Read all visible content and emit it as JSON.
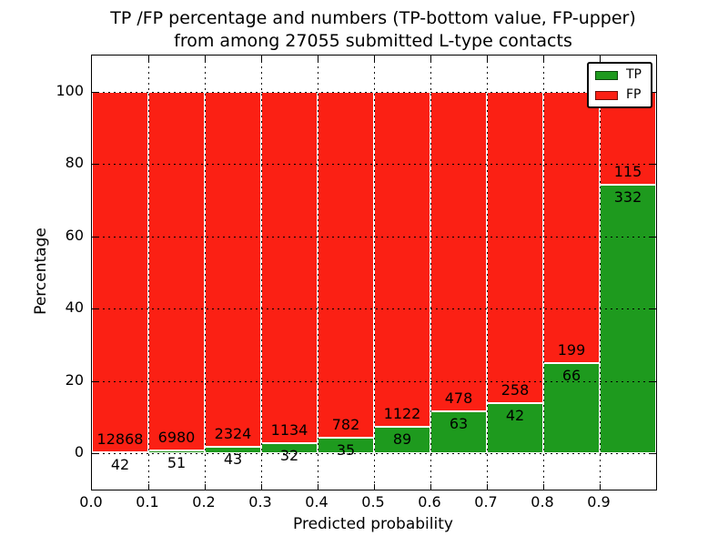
{
  "chart_data": {
    "type": "bar",
    "stacked": true,
    "normalized_to_percent": true,
    "title": "TP /FP percentage and numbers (TP-bottom value, FP-upper)",
    "subtitle": "from among 27055 submitted L-type contacts",
    "xlabel": "Predicted probability",
    "ylabel": "Percentage",
    "x_tick_labels": [
      "0.0",
      "0.1",
      "0.2",
      "0.3",
      "0.4",
      "0.5",
      "0.6",
      "0.7",
      "0.8",
      "0.9"
    ],
    "y_ticks": [
      0,
      20,
      40,
      60,
      80,
      100
    ],
    "xlim": [
      0.0,
      1.0
    ],
    "ylim": [
      -10,
      110
    ],
    "bin_width": 0.1,
    "categories": [
      "0.0-0.1",
      "0.1-0.2",
      "0.2-0.3",
      "0.3-0.4",
      "0.4-0.5",
      "0.5-0.6",
      "0.6-0.7",
      "0.7-0.8",
      "0.8-0.9",
      "0.9-1.0"
    ],
    "series": [
      {
        "name": "TP",
        "color": "#1e9a1e",
        "values": [
          42,
          51,
          43,
          32,
          35,
          89,
          63,
          42,
          66,
          332
        ]
      },
      {
        "name": "FP",
        "color": "#fb2014",
        "values": [
          12868,
          6980,
          2324,
          1134,
          782,
          1122,
          478,
          258,
          199,
          115
        ]
      }
    ],
    "legend": {
      "position": "upper right",
      "entries": [
        "TP",
        "FP"
      ]
    },
    "grid": {
      "visible": true,
      "style": "dotted",
      "color": "#000000"
    },
    "bar_edge_color": "#ffffff",
    "background_color": "#ffffff"
  }
}
